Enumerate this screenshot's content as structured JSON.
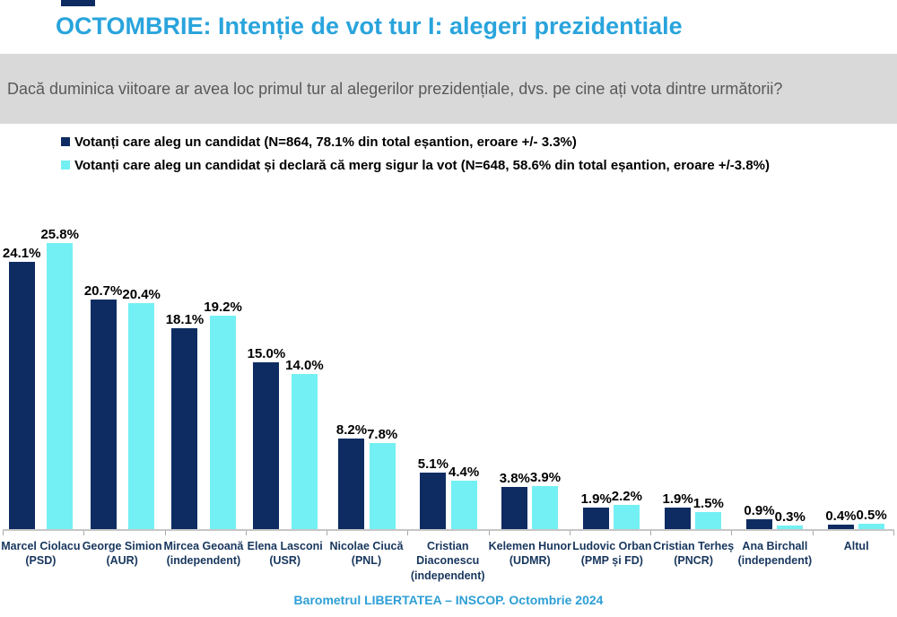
{
  "header": {
    "title": "OCTOMBRIE: Intenție de vot tur I: alegeri prezidentiale",
    "question": "Dacă duminica viitoare ar avea loc primul tur al alegerilor prezidențiale, dvs. pe cine ați vota dintre următorii?"
  },
  "legend": {
    "items": [
      {
        "label": "Votanți care aleg un candidat (N=864, 78.1% din total eșantion, eroare +/- 3.3%)",
        "color": "#0E2C62"
      },
      {
        "label": "Votanți care aleg un candidat și declară că merg sigur la vot (N=648, 58.6% din total eșantion, eroare +/-3.8%)",
        "color": "#73F0F4"
      }
    ]
  },
  "footer": {
    "source_label": "Barometrul LIBERTATEA – INSCOP. Octombrie 2024"
  },
  "colors": {
    "title": "#29A4DC",
    "question_band_bg": "#D9D9D9",
    "question_text": "#595959",
    "navy": "#0E2C62",
    "cyan": "#73F0F4",
    "axis_line": "#C6C6C6",
    "tick": "#A8A8A8",
    "category_label": "#17365D",
    "value_label": "#000000",
    "footer_text": "#2D9FD6"
  },
  "chart_data": {
    "type": "bar",
    "title": "OCTOMBRIE: Intenție de vot tur I: alegeri prezidentiale",
    "unit": "%",
    "grid": false,
    "legend_position": "top-left",
    "ylim": [
      0,
      30
    ],
    "y_axis_visible": false,
    "categories": [
      "Marcel Ciolacu (PSD)",
      "George Simion (AUR)",
      "Mircea Geoană (independent)",
      "Elena Lasconi (USR)",
      "Nicolae Ciucă (PNL)",
      "Cristian Diaconescu (independent)",
      "Kelemen Hunor (UDMR)",
      "Ludovic Orban (PMP și FD)",
      "Cristian Terheș (PNCR)",
      "Ana Birchall (independent)",
      "Altul"
    ],
    "label_lines": [
      [
        "Marcel Ciolacu",
        "(PSD)"
      ],
      [
        "George Simion",
        "(AUR)"
      ],
      [
        "Mircea Geoană",
        "(independent)"
      ],
      [
        "Elena Lasconi",
        "(USR)"
      ],
      [
        "Nicolae Ciucă",
        "(PNL)"
      ],
      [
        "Cristian",
        "Diaconescu",
        "(independent)"
      ],
      [
        "Kelemen Hunor",
        "(UDMR)"
      ],
      [
        "Ludovic Orban",
        "(PMP și FD)"
      ],
      [
        "Cristian Terheș",
        "(PNCR)"
      ],
      [
        "Ana Birchall",
        "(independent)"
      ],
      [
        "Altul"
      ]
    ],
    "series": [
      {
        "name": "Votanți care aleg un candidat (N=864, 78.1% din total eșantion, eroare +/- 3.3%)",
        "key": "all-voters",
        "color": "#0E2C62",
        "values": [
          24.1,
          20.7,
          18.1,
          15.0,
          8.2,
          5.1,
          3.8,
          1.9,
          1.9,
          0.9,
          0.4
        ]
      },
      {
        "name": "Votanți care aleg un candidat și declară că merg sigur la vot (N=648, 58.6% din total eșantion, eroare +/-3.8%)",
        "key": "sure-voters",
        "color": "#73F0F4",
        "values": [
          25.8,
          20.4,
          19.2,
          14.0,
          7.8,
          4.4,
          3.9,
          2.2,
          1.5,
          0.3,
          0.5
        ]
      }
    ],
    "value_label_format": "{value}%"
  }
}
